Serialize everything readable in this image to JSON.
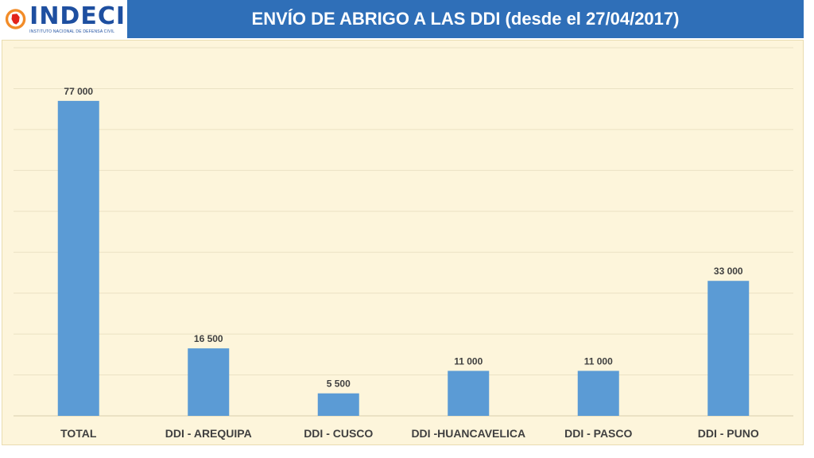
{
  "logo": {
    "name": "INDECI",
    "subtitle": "INSTITUTO NACIONAL DE DEFENSA CIVIL"
  },
  "header": {
    "title": "ENVÍO DE ABRIGO A LAS DDI (desde el 27/04/2017)"
  },
  "colors": {
    "header_bg": "#2f6fb8",
    "panel_bg": "#fdf5db",
    "bar": "#5b9bd5",
    "text": "#404040"
  },
  "chart_data": {
    "type": "bar",
    "title": "ENVÍO DE ABRIGO A LAS DDI (desde el 27/04/2017)",
    "categories": [
      "TOTAL",
      "DDI - AREQUIPA",
      "DDI - CUSCO",
      "DDI -HUANCAVELICA",
      "DDI - PASCO",
      "DDI - PUNO"
    ],
    "values": [
      77000,
      16500,
      5500,
      11000,
      11000,
      33000
    ],
    "value_labels": [
      "77 000",
      "16 500",
      "5 500",
      "11 000",
      "11 000",
      "33 000"
    ],
    "xlabel": "",
    "ylabel": "",
    "ylim": [
      0,
      90000
    ],
    "grid": true,
    "legend": "none"
  }
}
